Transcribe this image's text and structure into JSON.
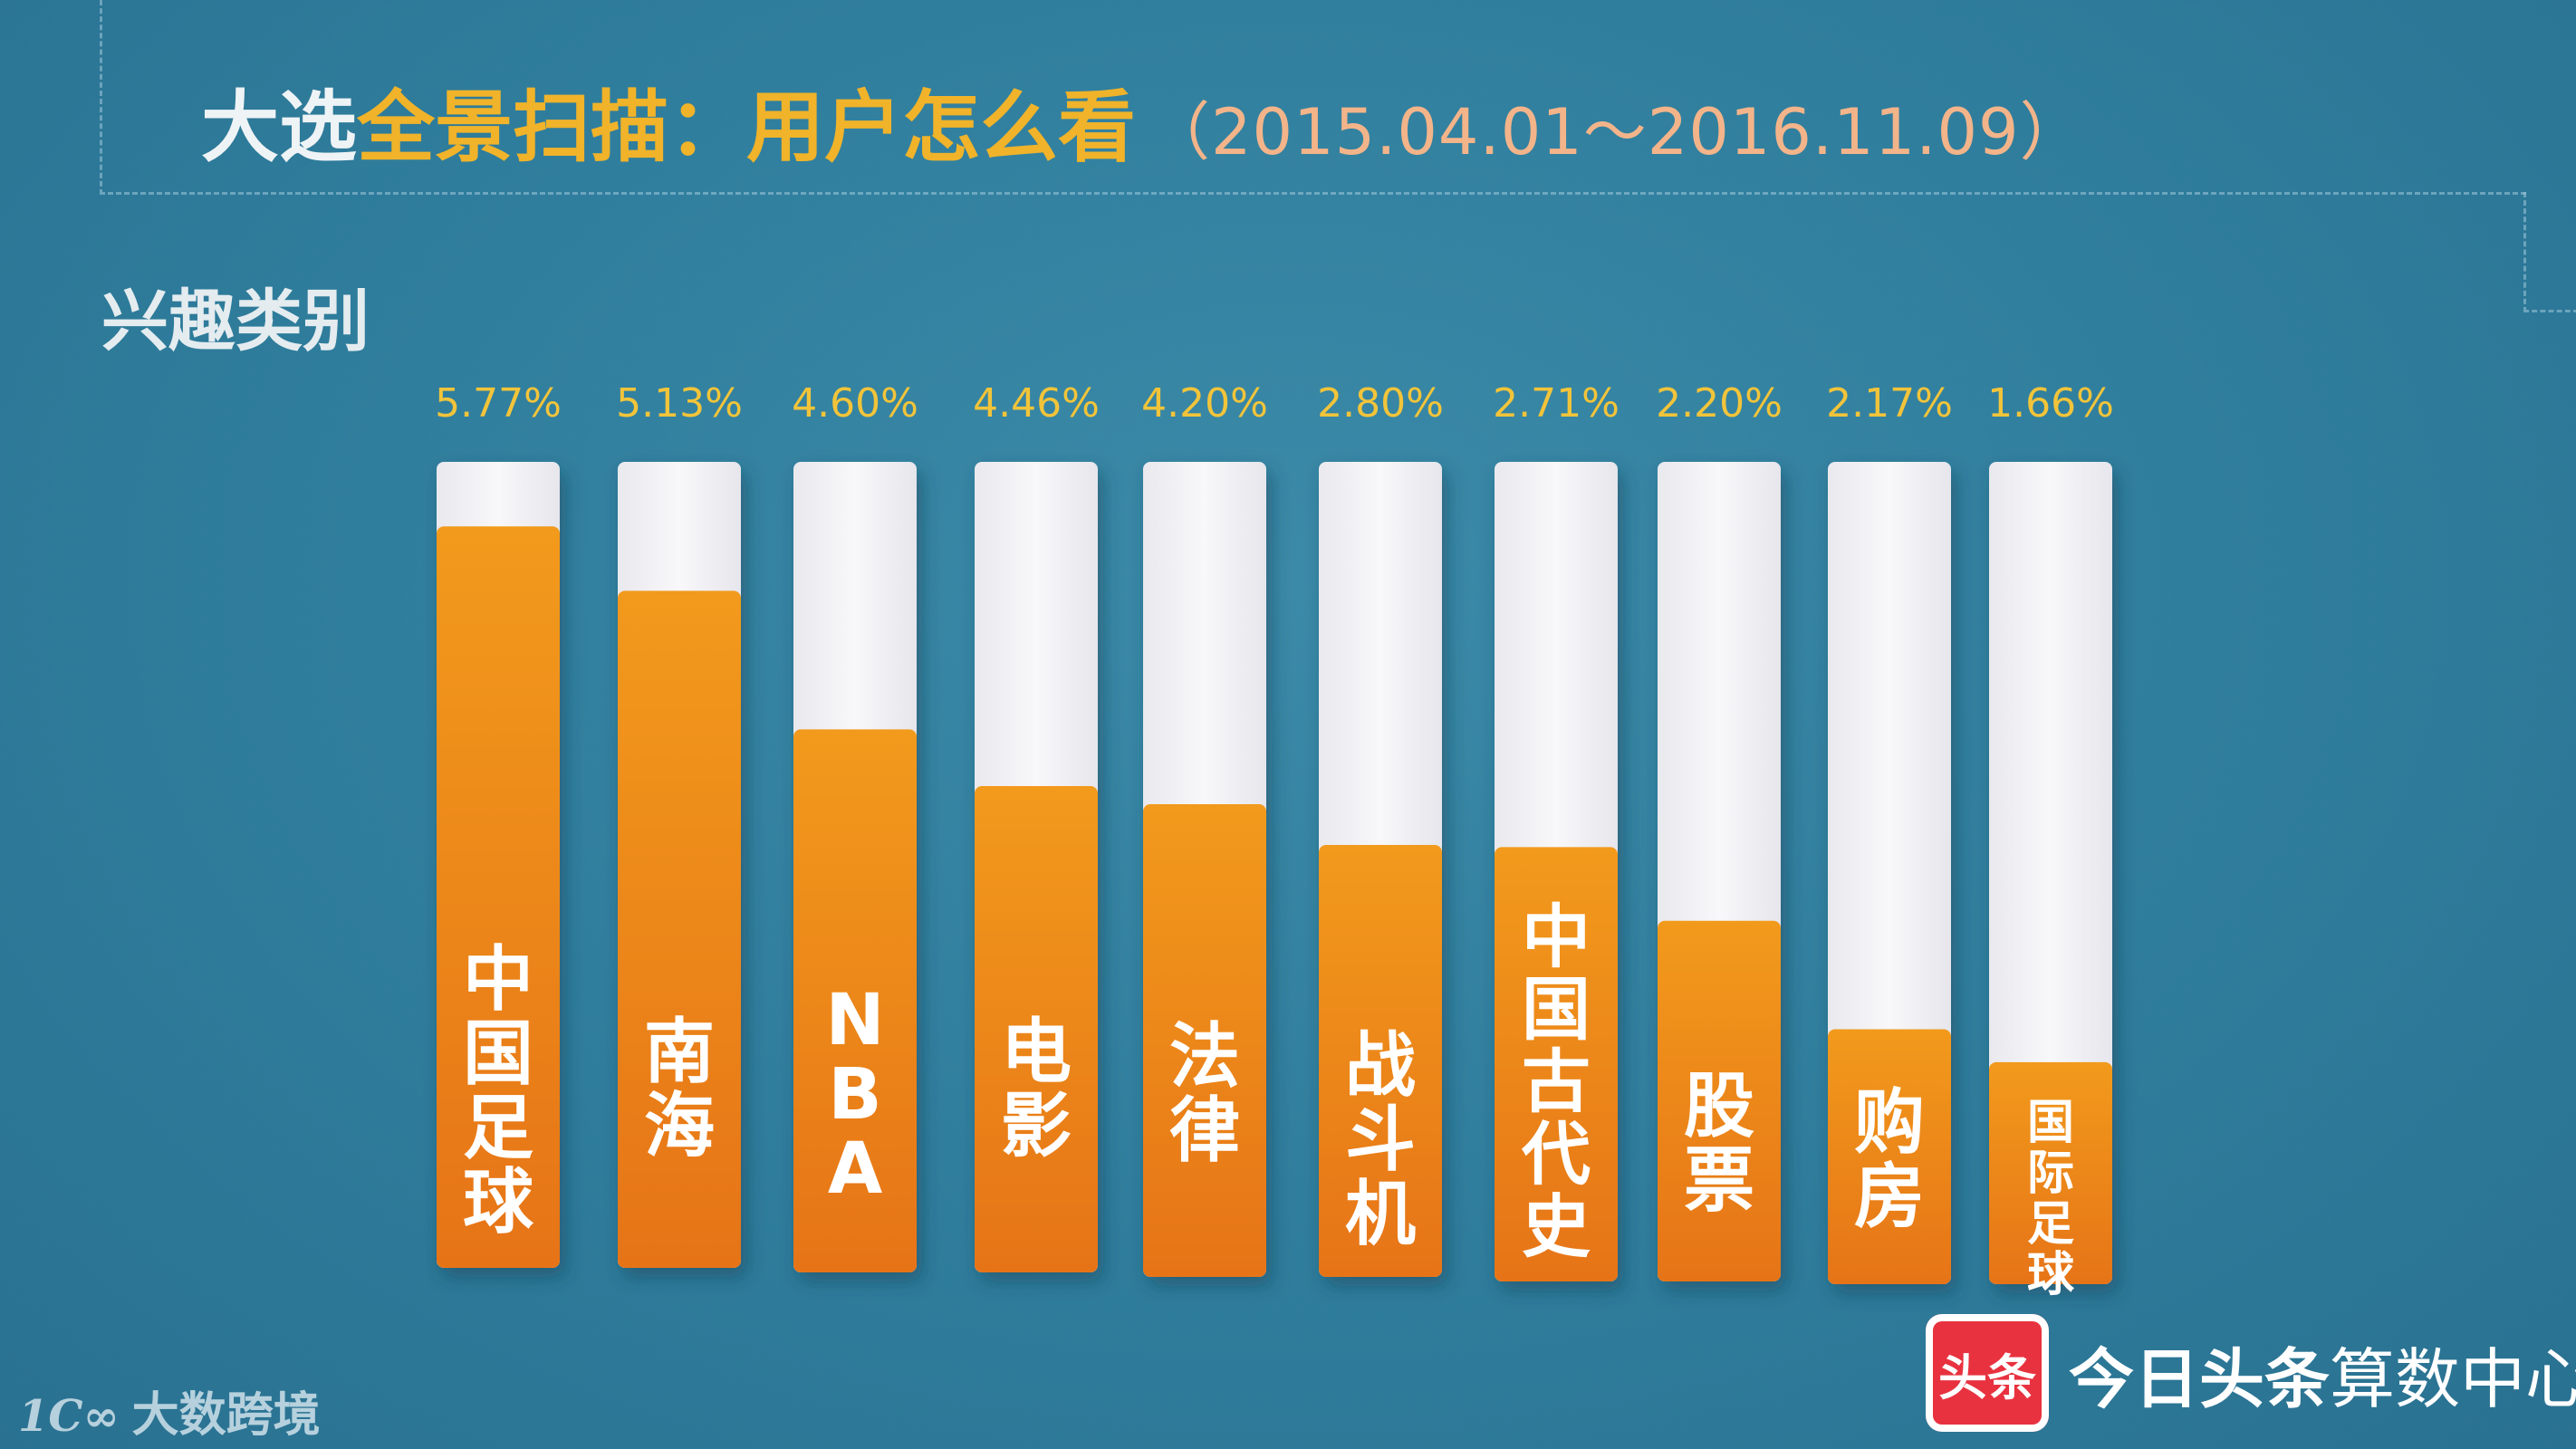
{
  "title": {
    "part1": "大选",
    "part2": "全景扫描：用户怎么看",
    "period": "（2015.04.01～2016.11.09）"
  },
  "subtitle": "兴趣类别",
  "colors": {
    "bar_fill": "#ec8a1a",
    "bar_track": "#f2f2f4",
    "value_label": "#f2c43a",
    "bar_label": "#ffffff"
  },
  "chart_data": {
    "type": "bar",
    "categories": [
      "中国足球",
      "南海",
      "NBA",
      "电影",
      "法律",
      "战斗机",
      "中国古代史",
      "股票",
      "购房",
      "国际足球"
    ],
    "values": [
      5.77,
      5.13,
      4.6,
      4.46,
      4.2,
      2.8,
      2.71,
      2.2,
      2.17,
      1.66
    ],
    "value_labels": [
      "5.77%",
      "5.13%",
      "4.60%",
      "4.46%",
      "4.20%",
      "2.80%",
      "2.71%",
      "2.20%",
      "2.17%",
      "1.66%"
    ],
    "unit": "%",
    "fill_fractions": [
      0.92,
      0.84,
      0.67,
      0.6,
      0.58,
      0.53,
      0.53,
      0.44,
      0.31,
      0.27
    ],
    "orientation": "vertical",
    "category_labels_inside_bars": true,
    "grid": false,
    "legend": "none"
  },
  "footer": {
    "left_logo_mark": "1Ⅽ∞",
    "left_logo_text": "大数跨境",
    "right_badge": "头条",
    "right_brand": "今日头条",
    "right_suffix": "算数中心"
  }
}
